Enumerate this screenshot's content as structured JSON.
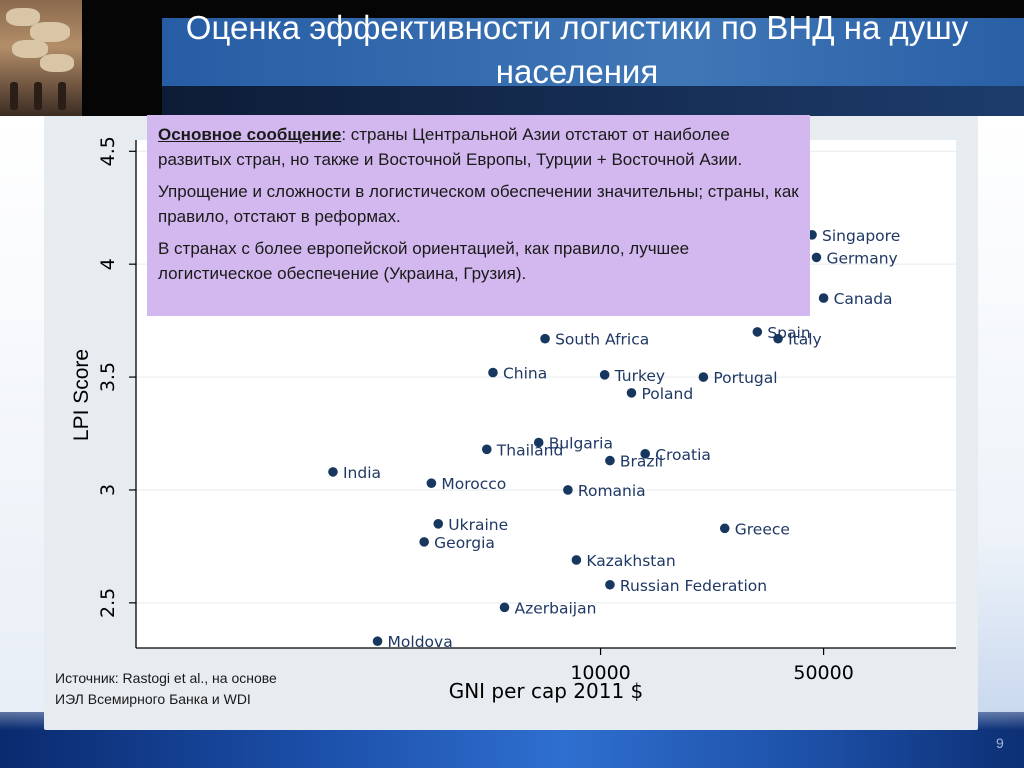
{
  "slide": {
    "title": "Оценка эффективности логистики по ВНД на душу населения",
    "page_number": "9"
  },
  "message": {
    "lead": "Основное сообщение",
    "p1_rest": ": страны Центральной Азии отстают от наиболее развитых стран, но также и Восточной Европы, Турции + Восточной Азии.",
    "p2": "Упрощение и сложности в логистическом обеспечении значительны; страны, как правило, отстают в реформах.",
    "p3": "В странах с более европейской ориентацией, как правило, лучшее логистическое обеспечение (Украина, Грузия)."
  },
  "source": "Источник: Rastogi et al., на основе ИЭЛ Всемирного Банка и WDI",
  "chart_data": {
    "type": "scatter",
    "xlabel": "GNI per cap 2011 $",
    "ylabel": "LPI Score",
    "x_scale": "log",
    "xlim": [
      350,
      130000
    ],
    "ylim": [
      2.3,
      4.55
    ],
    "xticks": [
      {
        "value": 10000,
        "label": "10000"
      },
      {
        "value": 50000,
        "label": "50000"
      }
    ],
    "yticks": [
      {
        "value": 2.5,
        "label": "2.5"
      },
      {
        "value": 3,
        "label": "3"
      },
      {
        "value": 3.5,
        "label": "3.5"
      },
      {
        "value": 4,
        "label": "4"
      },
      {
        "value": 4.5,
        "label": "4.5"
      }
    ],
    "grid": "horizontal",
    "marker_color": "#17375e",
    "label_color": "#1f3864",
    "points": [
      {
        "label": "Singapore",
        "x": 46000,
        "y": 4.13
      },
      {
        "label": "Germany",
        "x": 47500,
        "y": 4.03
      },
      {
        "label": "Canada",
        "x": 50000,
        "y": 3.85
      },
      {
        "label": "Spain",
        "x": 31000,
        "y": 3.7
      },
      {
        "label": "Italy",
        "x": 36000,
        "y": 3.67
      },
      {
        "label": "South Africa",
        "x": 6700,
        "y": 3.67
      },
      {
        "label": "China",
        "x": 4600,
        "y": 3.52
      },
      {
        "label": "Turkey",
        "x": 10300,
        "y": 3.51
      },
      {
        "label": "Portugal",
        "x": 21000,
        "y": 3.5
      },
      {
        "label": "Poland",
        "x": 12500,
        "y": 3.43
      },
      {
        "label": "Bulgaria",
        "x": 6400,
        "y": 3.21
      },
      {
        "label": "Thailand",
        "x": 4400,
        "y": 3.18
      },
      {
        "label": "Croatia",
        "x": 13800,
        "y": 3.16
      },
      {
        "label": "Brazil",
        "x": 10700,
        "y": 3.13
      },
      {
        "label": "India",
        "x": 1450,
        "y": 3.08
      },
      {
        "label": "Morocco",
        "x": 2950,
        "y": 3.03
      },
      {
        "label": "Romania",
        "x": 7900,
        "y": 3.0
      },
      {
        "label": "Ukraine",
        "x": 3100,
        "y": 2.85
      },
      {
        "label": "Greece",
        "x": 24500,
        "y": 2.83
      },
      {
        "label": "Georgia",
        "x": 2800,
        "y": 2.77
      },
      {
        "label": "Kazakhstan",
        "x": 8400,
        "y": 2.69
      },
      {
        "label": "Russian Federation",
        "x": 10700,
        "y": 2.58
      },
      {
        "label": "Azerbaijan",
        "x": 5000,
        "y": 2.48
      },
      {
        "label": "Moldova",
        "x": 2000,
        "y": 2.33
      }
    ]
  }
}
